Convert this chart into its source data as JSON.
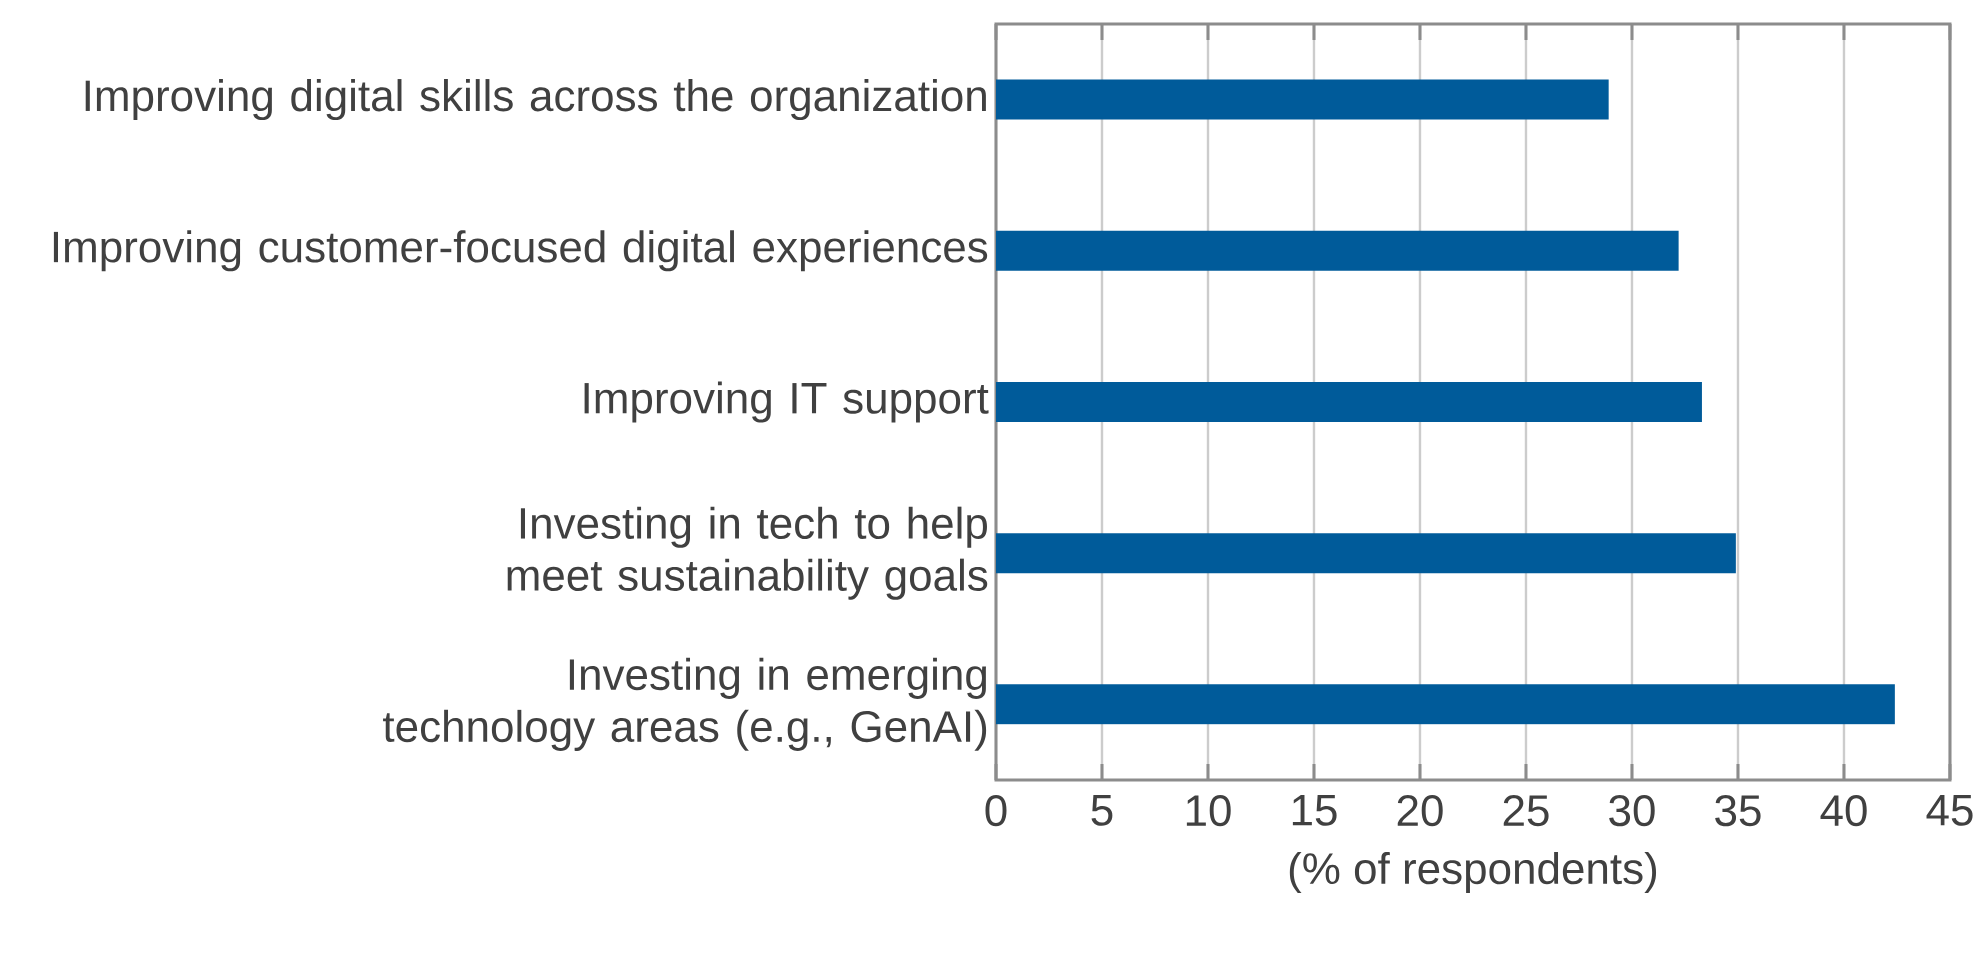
{
  "chart_data": {
    "type": "bar",
    "orientation": "horizontal",
    "xlabel": "(% of respondents)",
    "categories": [
      "Improving digital skills across the organization",
      "Improving customer-focused digital experiences",
      "Improving IT support",
      "Investing in tech to help meet sustainability goals",
      "Investing in emerging technology areas (e.g., GenAI)"
    ],
    "values": [
      28.9,
      32.2,
      33.3,
      34.9,
      42.4
    ],
    "color": "#005b9a",
    "xlim": [
      0,
      45
    ],
    "xticks": [
      0,
      5,
      10,
      15,
      20,
      25,
      30,
      35,
      40,
      45
    ],
    "grid": "x"
  }
}
